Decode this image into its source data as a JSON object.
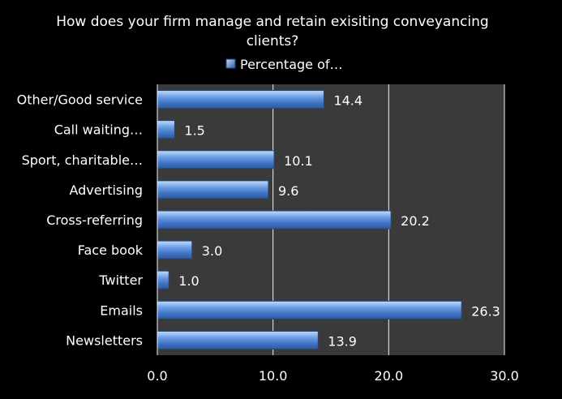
{
  "chart_data": {
    "type": "bar",
    "orientation": "horizontal",
    "title_lines": [
      "How does your firm manage and retain exisiting conveyancing",
      "clients?"
    ],
    "categories": [
      "Other/Good service",
      "Call waiting…",
      "Sport, charitable…",
      "Advertising",
      "Cross-referring",
      "Face book",
      "Twitter",
      "Emails",
      "Newsletters"
    ],
    "series": [
      {
        "name": "Percentage of…",
        "values": [
          14.4,
          1.5,
          10.1,
          9.6,
          20.2,
          3.0,
          1.0,
          26.3,
          13.9
        ],
        "labels": [
          "14.4",
          "1.5",
          "10.1",
          "9.6",
          "20.2",
          "3.0",
          "1.0",
          "26.3",
          "13.9"
        ]
      }
    ],
    "xlim": [
      0,
      30
    ],
    "x_ticks": [
      0,
      10,
      20,
      30
    ],
    "x_tick_labels": [
      "0.0",
      "10.0",
      "20.0",
      "30.0"
    ],
    "grid": true,
    "legend_position": "top",
    "colors": {
      "background": "#000000",
      "plot_background": "#3a3a3a",
      "bar_fill": "#4a7fd0",
      "bar_highlight": "#b8d3f7",
      "bar_edge": "#23467e",
      "grid": "#f2f2f2",
      "text": "#ffffff"
    }
  }
}
